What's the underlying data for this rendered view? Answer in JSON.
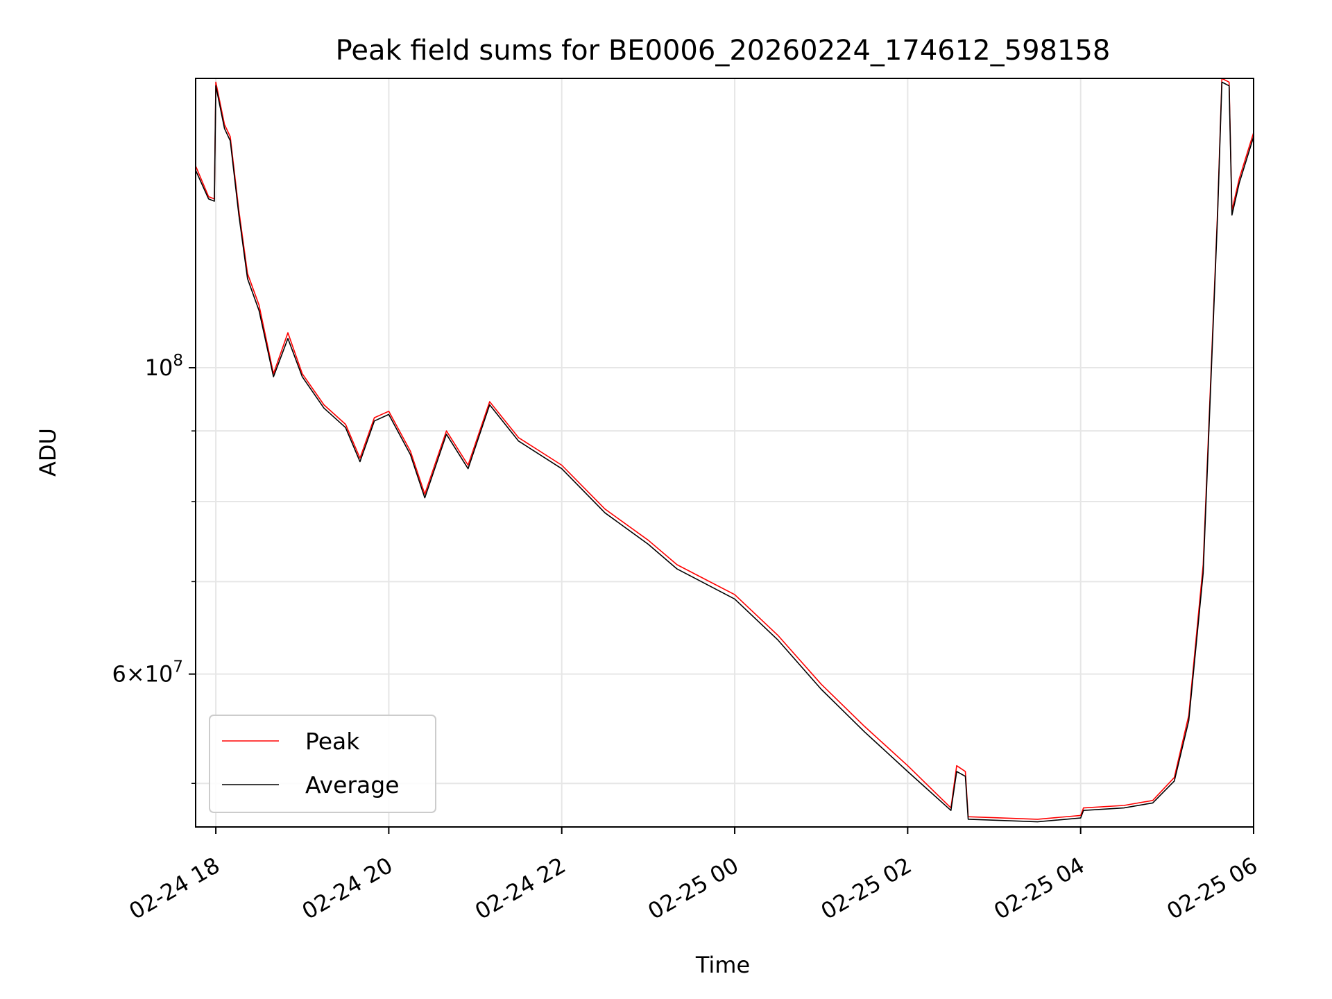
{
  "chart_data": {
    "type": "line",
    "title": "Peak field sums for BE0006_20260224_174612_598158",
    "xlabel": "Time",
    "ylabel": "ADU",
    "yscale": "log",
    "grid": true,
    "legend_position": "lower-left",
    "xlim": [
      "2026-02-24T17:46",
      "2026-02-25T06:00"
    ],
    "ylim": [
      46500000,
      162000000
    ],
    "x_ticks": [
      "02-24 18",
      "02-24 20",
      "02-24 22",
      "02-25 00",
      "02-25 02",
      "02-25 04",
      "02-25 06"
    ],
    "y_ticks": [
      {
        "value": 100000000,
        "label": "10^8"
      },
      {
        "value": 60000000,
        "label": "6×10^7"
      }
    ],
    "x_ticks_value": [
      "2026-02-24T18:00",
      "2026-02-24T20:00",
      "2026-02-24T22:00",
      "2026-02-25T00:00",
      "2026-02-25T02:00",
      "2026-02-25T04:00",
      "2026-02-25T06:00"
    ],
    "series": [
      {
        "name": "Peak",
        "color": "#ff0000",
        "points": [
          [
            "2026-02-24T17:46",
            140000000
          ],
          [
            "2026-02-24T17:55",
            133000000
          ],
          [
            "2026-02-24T17:59",
            132500000
          ],
          [
            "2026-02-24T18:00",
            161000000
          ],
          [
            "2026-02-24T18:06",
            150000000
          ],
          [
            "2026-02-24T18:10",
            147000000
          ],
          [
            "2026-02-24T18:16",
            130000000
          ],
          [
            "2026-02-24T18:22",
            117000000
          ],
          [
            "2026-02-24T18:30",
            111000000
          ],
          [
            "2026-02-24T18:40",
            99000000
          ],
          [
            "2026-02-24T18:50",
            106000000
          ],
          [
            "2026-02-24T19:00",
            99000000
          ],
          [
            "2026-02-24T19:15",
            94000000
          ],
          [
            "2026-02-24T19:30",
            91000000
          ],
          [
            "2026-02-24T19:40",
            86000000
          ],
          [
            "2026-02-24T19:50",
            92000000
          ],
          [
            "2026-02-24T20:00",
            93000000
          ],
          [
            "2026-02-24T20:15",
            87000000
          ],
          [
            "2026-02-24T20:25",
            81000000
          ],
          [
            "2026-02-24T20:40",
            90000000
          ],
          [
            "2026-02-24T20:55",
            85000000
          ],
          [
            "2026-02-24T21:10",
            94500000
          ],
          [
            "2026-02-24T21:30",
            89000000
          ],
          [
            "2026-02-24T22:00",
            85000000
          ],
          [
            "2026-02-24T22:30",
            79000000
          ],
          [
            "2026-02-24T23:00",
            75000000
          ],
          [
            "2026-02-24T23:20",
            72000000
          ],
          [
            "2026-02-25T00:00",
            68500000
          ],
          [
            "2026-02-25T00:30",
            64000000
          ],
          [
            "2026-02-25T01:00",
            59000000
          ],
          [
            "2026-02-25T01:30",
            55000000
          ],
          [
            "2026-02-25T02:00",
            51500000
          ],
          [
            "2026-02-25T02:30",
            48000000
          ],
          [
            "2026-02-25T02:34",
            51500000
          ],
          [
            "2026-02-25T02:40",
            51000000
          ],
          [
            "2026-02-25T02:42",
            47300000
          ],
          [
            "2026-02-25T03:30",
            47100000
          ],
          [
            "2026-02-25T04:00",
            47400000
          ],
          [
            "2026-02-25T04:02",
            48000000
          ],
          [
            "2026-02-25T04:30",
            48200000
          ],
          [
            "2026-02-25T04:50",
            48600000
          ],
          [
            "2026-02-25T05:05",
            50500000
          ],
          [
            "2026-02-25T05:15",
            56000000
          ],
          [
            "2026-02-25T05:25",
            72000000
          ],
          [
            "2026-02-25T05:35",
            130000000
          ],
          [
            "2026-02-25T05:38",
            162000000
          ],
          [
            "2026-02-25T05:43",
            161000000
          ],
          [
            "2026-02-25T05:45",
            130000000
          ],
          [
            "2026-02-25T05:50",
            137000000
          ],
          [
            "2026-02-25T06:00",
            148000000
          ]
        ]
      },
      {
        "name": "Average",
        "color": "#000000",
        "points": [
          [
            "2026-02-24T17:46",
            139000000
          ],
          [
            "2026-02-24T17:55",
            132500000
          ],
          [
            "2026-02-24T17:59",
            132000000
          ],
          [
            "2026-02-24T18:00",
            160000000
          ],
          [
            "2026-02-24T18:06",
            149000000
          ],
          [
            "2026-02-24T18:10",
            146000000
          ],
          [
            "2026-02-24T18:16",
            129000000
          ],
          [
            "2026-02-24T18:22",
            116000000
          ],
          [
            "2026-02-24T18:30",
            110000000
          ],
          [
            "2026-02-24T18:40",
            98500000
          ],
          [
            "2026-02-24T18:50",
            105000000
          ],
          [
            "2026-02-24T19:00",
            98500000
          ],
          [
            "2026-02-24T19:15",
            93500000
          ],
          [
            "2026-02-24T19:30",
            90500000
          ],
          [
            "2026-02-24T19:40",
            85500000
          ],
          [
            "2026-02-24T19:50",
            91500000
          ],
          [
            "2026-02-24T20:00",
            92500000
          ],
          [
            "2026-02-24T20:15",
            86500000
          ],
          [
            "2026-02-24T20:25",
            80500000
          ],
          [
            "2026-02-24T20:40",
            89500000
          ],
          [
            "2026-02-24T20:55",
            84500000
          ],
          [
            "2026-02-24T21:10",
            94000000
          ],
          [
            "2026-02-24T21:30",
            88500000
          ],
          [
            "2026-02-24T22:00",
            84500000
          ],
          [
            "2026-02-24T22:30",
            78500000
          ],
          [
            "2026-02-24T23:00",
            74500000
          ],
          [
            "2026-02-24T23:20",
            71500000
          ],
          [
            "2026-02-25T00:00",
            68000000
          ],
          [
            "2026-02-25T00:30",
            63500000
          ],
          [
            "2026-02-25T01:00",
            58500000
          ],
          [
            "2026-02-25T01:30",
            54500000
          ],
          [
            "2026-02-25T02:00",
            51000000
          ],
          [
            "2026-02-25T02:30",
            47800000
          ],
          [
            "2026-02-25T02:34",
            51000000
          ],
          [
            "2026-02-25T02:40",
            50600000
          ],
          [
            "2026-02-25T02:42",
            47100000
          ],
          [
            "2026-02-25T03:30",
            46900000
          ],
          [
            "2026-02-25T04:00",
            47200000
          ],
          [
            "2026-02-25T04:02",
            47800000
          ],
          [
            "2026-02-25T04:30",
            48000000
          ],
          [
            "2026-02-25T04:50",
            48400000
          ],
          [
            "2026-02-25T05:05",
            50200000
          ],
          [
            "2026-02-25T05:15",
            55500000
          ],
          [
            "2026-02-25T05:25",
            71000000
          ],
          [
            "2026-02-25T05:35",
            129000000
          ],
          [
            "2026-02-25T05:38",
            161000000
          ],
          [
            "2026-02-25T05:43",
            160000000
          ],
          [
            "2026-02-25T05:45",
            129000000
          ],
          [
            "2026-02-25T05:50",
            136000000
          ],
          [
            "2026-02-25T06:00",
            147000000
          ]
        ]
      }
    ]
  }
}
